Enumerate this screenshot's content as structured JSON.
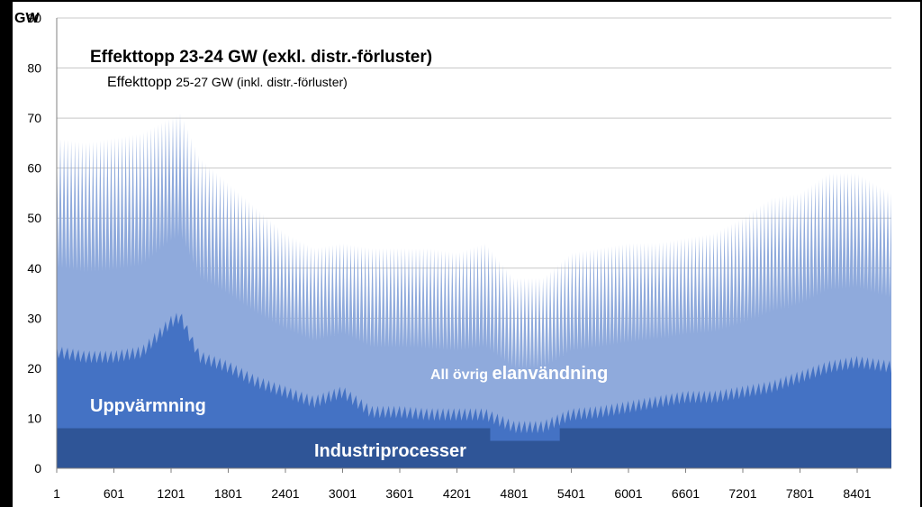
{
  "chart_data": {
    "type": "area",
    "title": "",
    "xlabel": "",
    "ylabel": "GW",
    "ylim": [
      0,
      90
    ],
    "xlim": [
      1,
      8760
    ],
    "yticks": [
      0,
      10,
      20,
      30,
      40,
      50,
      60,
      70,
      80,
      90
    ],
    "xticks": [
      1,
      601,
      1201,
      1801,
      2401,
      3001,
      3601,
      4201,
      4801,
      5401,
      6001,
      6601,
      7201,
      7801,
      8401
    ],
    "grid": true,
    "annotations": {
      "peak_main": "Effekttopp 23-24 GW (exkl. distr.-förluster)",
      "peak_sub_prefix": "Effekttopp ",
      "peak_sub_suffix": "25-27 GW (inkl. distr.-förluster)"
    },
    "series": [
      {
        "name": "Industriprocesser",
        "color": "#2f5597",
        "baseline": 8,
        "dip": {
          "start": 4550,
          "end": 5280,
          "value": 5.5
        }
      },
      {
        "name": "Uppvärmning",
        "color": "#4472c4",
        "label_parts": [
          "Uppvärmning"
        ],
        "x": [
          1,
          300,
          600,
          900,
          1200,
          1300,
          1500,
          1800,
          2100,
          2400,
          2700,
          3000,
          3300,
          3600,
          3900,
          4200,
          4500,
          4800,
          5100,
          5400,
          5700,
          6000,
          6300,
          6600,
          6900,
          7200,
          7500,
          7800,
          8100,
          8400,
          8760
        ],
        "values": [
          23,
          22,
          22,
          23,
          29,
          30,
          22,
          20,
          17,
          15,
          13,
          15,
          11,
          11,
          10.5,
          10.5,
          10.5,
          8,
          8,
          10.5,
          11,
          12,
          13,
          14,
          14,
          15,
          16,
          18,
          20,
          21,
          20
        ]
      },
      {
        "name": "All övrig elanvändning",
        "color": "#8faadc",
        "label_parts": [
          "All övrig ",
          "elanvändning"
        ],
        "x": [
          1,
          300,
          600,
          900,
          1200,
          1300,
          1500,
          1800,
          2100,
          2400,
          2700,
          3000,
          3300,
          3600,
          3900,
          4200,
          4500,
          4800,
          5100,
          5400,
          5700,
          6000,
          6300,
          6600,
          6900,
          7200,
          7500,
          7800,
          8100,
          8400,
          8760
        ],
        "values": [
          66,
          65,
          66,
          67,
          70,
          71,
          62,
          57,
          52,
          47,
          44,
          45,
          44,
          44,
          44,
          43,
          45,
          38,
          38,
          43,
          44,
          45,
          45,
          46,
          47,
          50,
          54,
          55,
          59,
          59,
          55
        ]
      }
    ]
  }
}
